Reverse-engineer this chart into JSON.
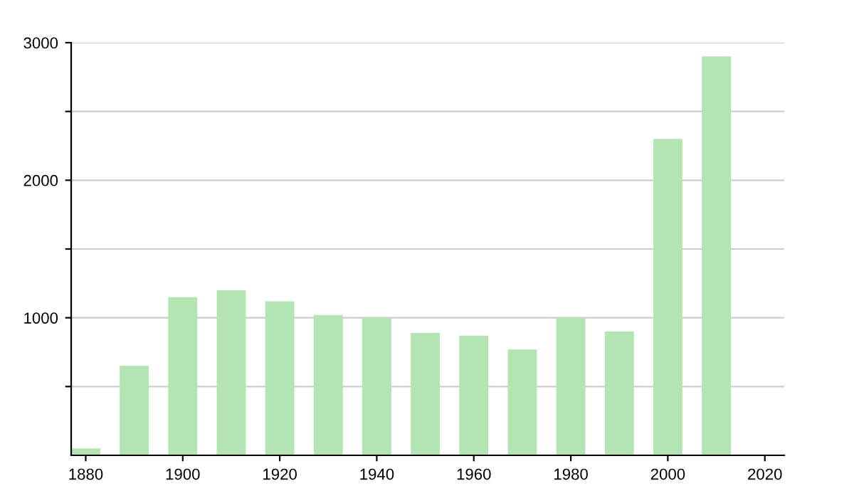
{
  "chart_data": {
    "type": "bar",
    "x": [
      1880,
      1890,
      1900,
      1910,
      1920,
      1930,
      1940,
      1950,
      1960,
      1970,
      1980,
      1990,
      2000,
      2010
    ],
    "values": [
      50,
      650,
      1150,
      1200,
      1120,
      1020,
      1000,
      890,
      870,
      770,
      1000,
      900,
      2300,
      2900
    ],
    "color": "#b3e5b3",
    "xlim": [
      1877,
      2024
    ],
    "xticks": [
      1880,
      1900,
      1920,
      1940,
      1960,
      1980,
      2000,
      2020
    ],
    "ylim": [
      0,
      3000
    ],
    "yticks": [
      {
        "value": 500,
        "label": null
      },
      1000,
      {
        "value": 1500,
        "label": null
      },
      2000,
      {
        "value": 2500,
        "label": null
      },
      3000
    ],
    "grid": "y",
    "legend": false
  }
}
